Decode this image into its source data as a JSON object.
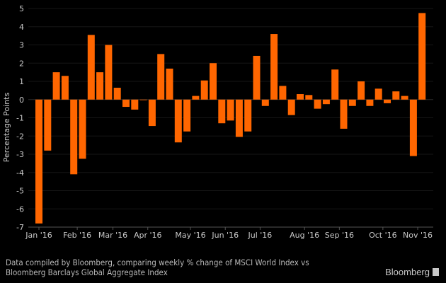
{
  "chart_data": {
    "type": "bar",
    "title": "",
    "xlabel": "",
    "ylabel": "Percentage Points",
    "ylim": [
      -7,
      5
    ],
    "yticks": [
      5,
      4,
      3,
      2,
      1,
      0,
      -1,
      -2,
      -3,
      -4,
      -5,
      -6,
      -7
    ],
    "grid": true,
    "bar_color": "#ff6600",
    "x_ticks": [
      {
        "label": "Jan '16",
        "pos": 0
      },
      {
        "label": "Feb '16",
        "pos": 4.4
      },
      {
        "label": "Mar '16",
        "pos": 8.5
      },
      {
        "label": "Apr '16",
        "pos": 12.5
      },
      {
        "label": "May '16",
        "pos": 17.4
      },
      {
        "label": "Jun '16",
        "pos": 21.4
      },
      {
        "label": "Jul '16",
        "pos": 25.4
      },
      {
        "label": "Aug '16",
        "pos": 30.5
      },
      {
        "label": "Sep '16",
        "pos": 34.5
      },
      {
        "label": "Oct '16",
        "pos": 39.5
      },
      {
        "label": "Nov '16",
        "pos": 43.5
      }
    ],
    "values": [
      -6.8,
      -2.8,
      1.5,
      1.3,
      -4.1,
      -3.25,
      3.55,
      1.5,
      3.0,
      0.65,
      -0.4,
      -0.55,
      0.0,
      -1.45,
      2.5,
      1.7,
      -2.35,
      -1.75,
      0.2,
      1.05,
      2.0,
      -1.3,
      -1.15,
      -2.05,
      -1.75,
      2.4,
      -0.35,
      3.6,
      0.75,
      -0.85,
      0.3,
      0.25,
      -0.5,
      -0.25,
      1.65,
      -1.6,
      -0.35,
      1.0,
      -0.35,
      0.6,
      -0.2,
      0.45,
      0.2,
      -3.1,
      4.75
    ]
  },
  "footnote": {
    "line1": "Data compiled by Bloomberg, comparing weekly % change of MSCI World Index vs",
    "line2": "Bloomberg Barclays Global Aggregate Index"
  },
  "brand": "Bloomberg"
}
